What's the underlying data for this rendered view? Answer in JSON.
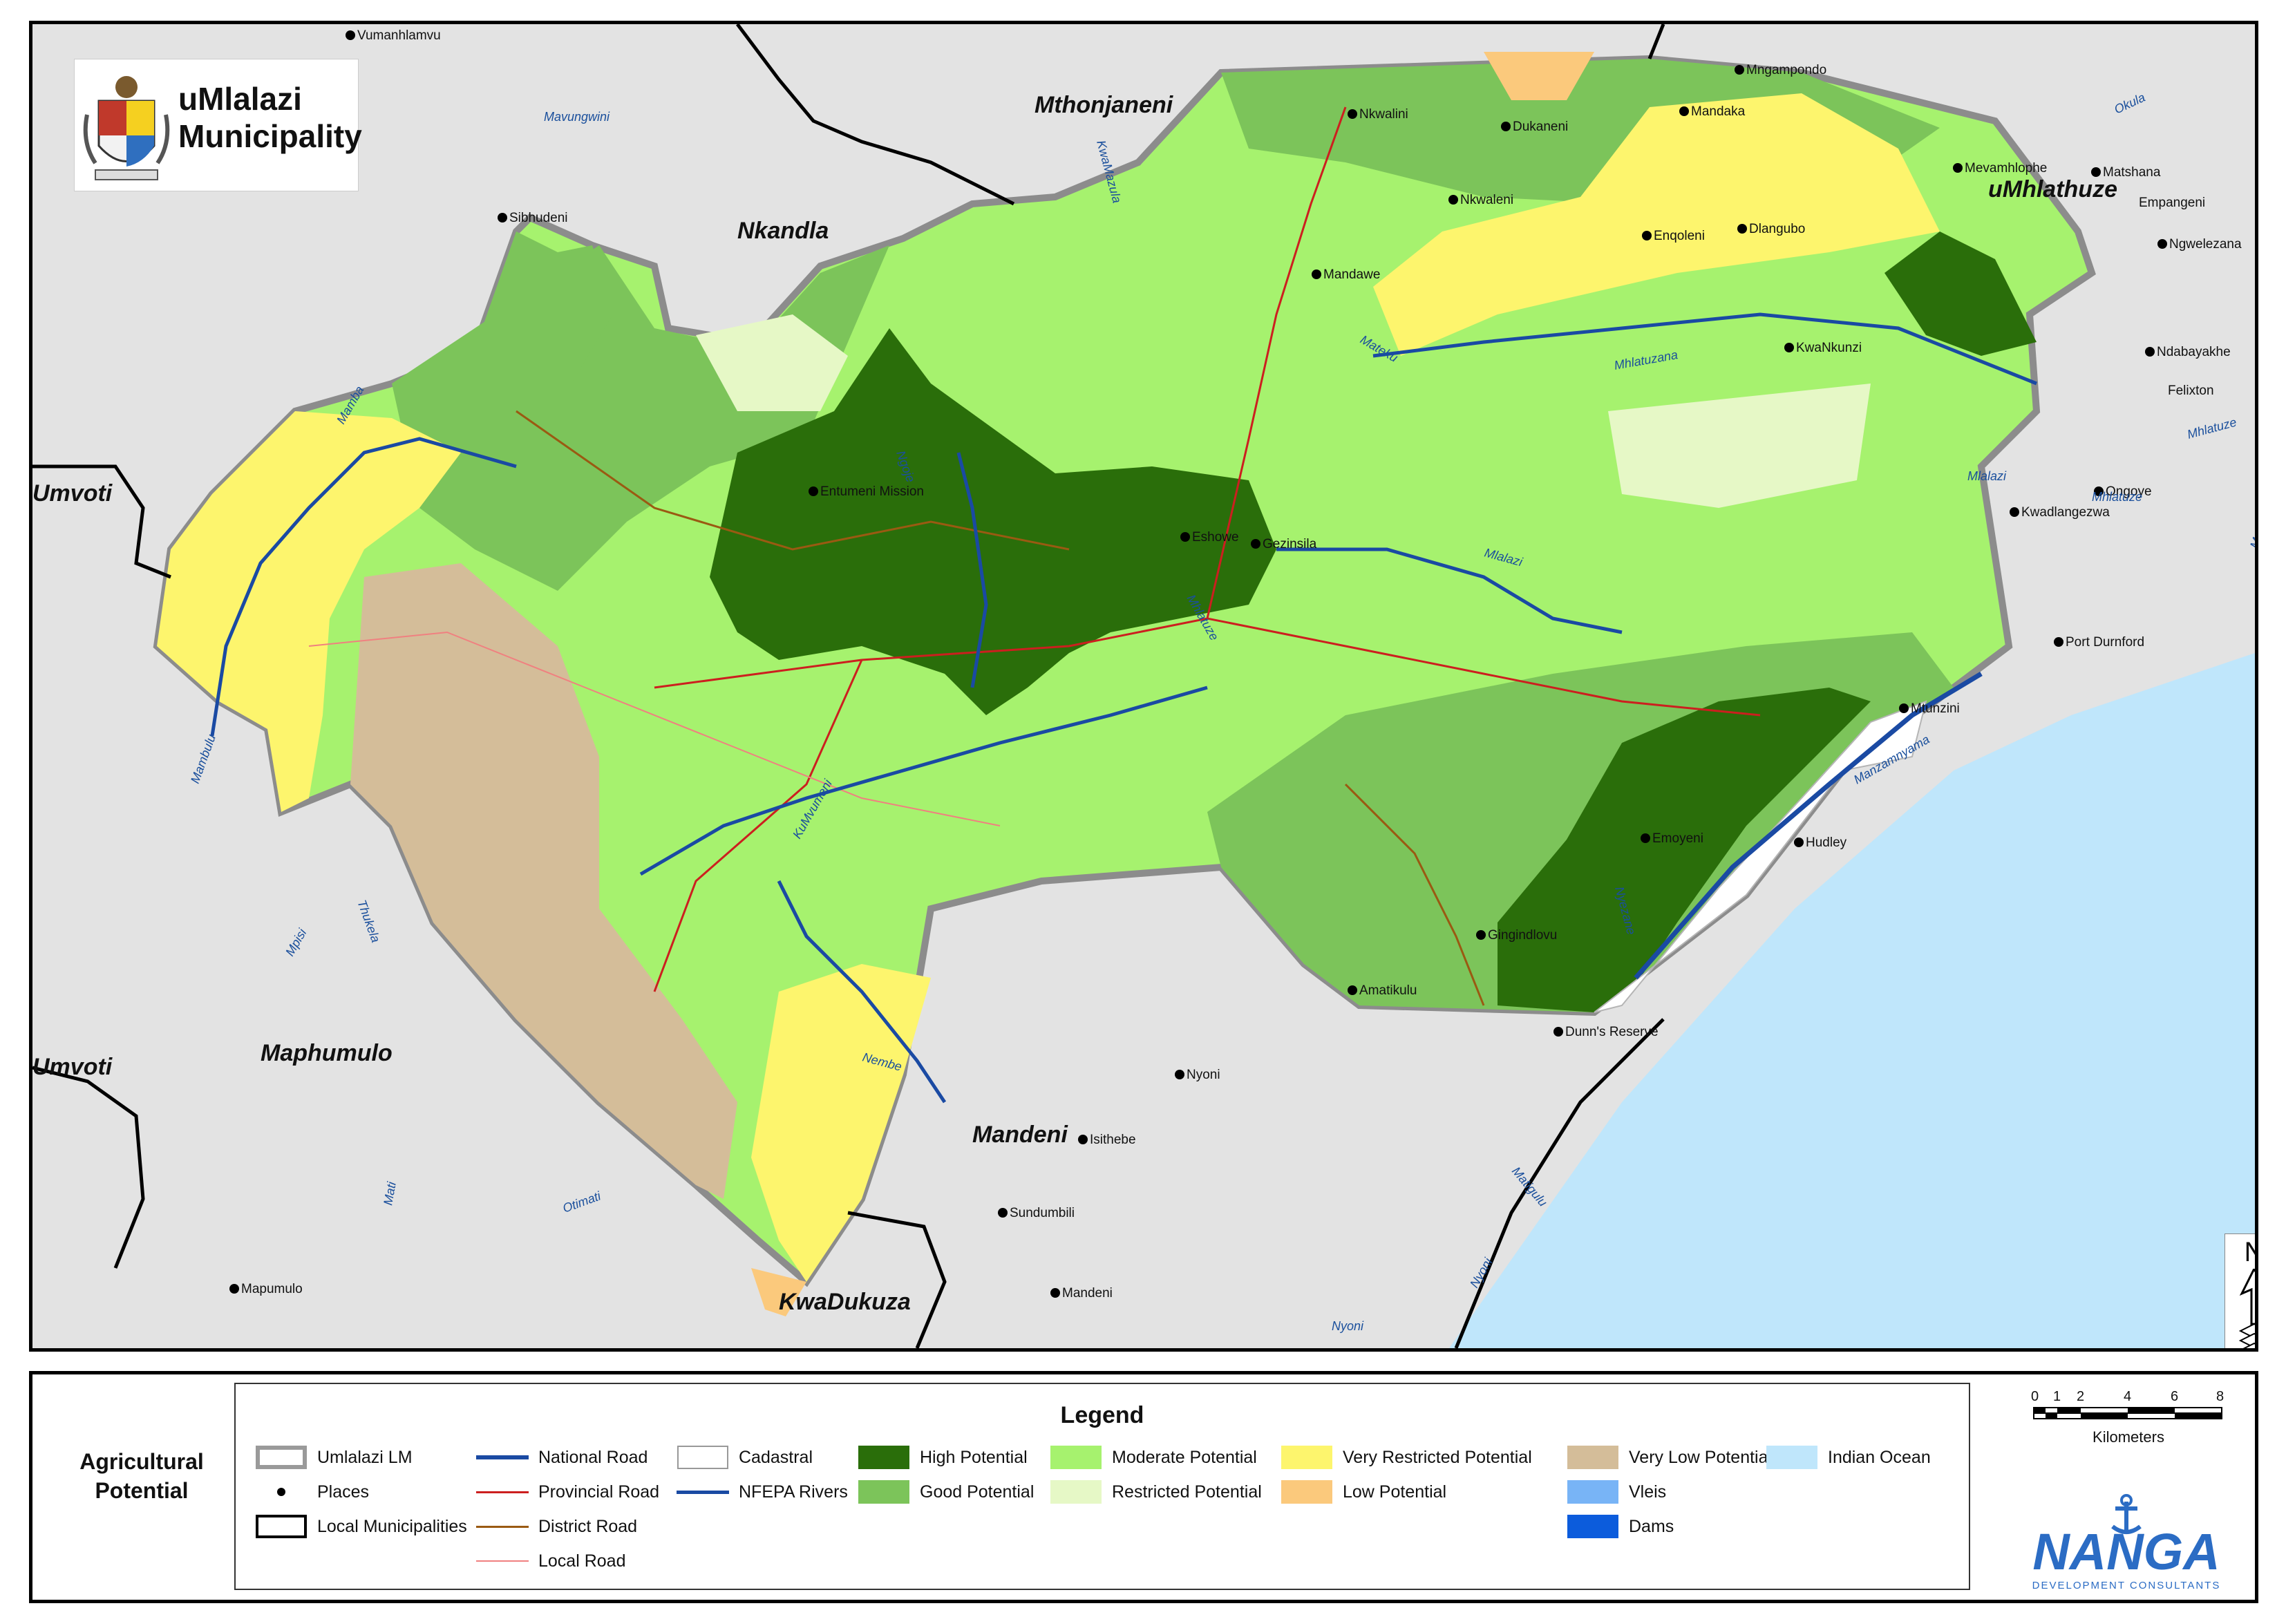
{
  "header": {
    "logo_title": "uMlalazi Municipality"
  },
  "panel_title": "Agricultural Potential",
  "map": {
    "municipalities": [
      "Nkandla",
      "Mthonjaneni",
      "uMhlathuze",
      "Umvoti",
      "Umvoti",
      "Maphumulo",
      "Mandeni",
      "KwaDukuza"
    ],
    "places": [
      "Vumanhlamvu",
      "Sibhudeni",
      "Entumeni Mission",
      "Eshowe",
      "Gezinsila",
      "Nkwalini",
      "Dukaneni",
      "Mandaka",
      "Mngampondo",
      "Nkwaleni",
      "Mandawe",
      "Enqoleni",
      "Dlangubo",
      "KwaNkunzi",
      "Mevamhlophe",
      "Matshana",
      "Empangeni",
      "Ngwelezana",
      "Ndabayakhe",
      "Felixton",
      "Ongoye",
      "Kwadlangezwa",
      "Port Durnford",
      "Mtunzini",
      "Hudley",
      "Emoyeni",
      "Gingindlovu",
      "Amatikulu",
      "Dunn's Reserve",
      "Nyoni",
      "Isithebe",
      "Sundumbili",
      "Mandeni",
      "Mapumulo"
    ],
    "rivers": [
      "Mavungwini",
      "Mamba",
      "Mambulu",
      "Thukela",
      "Mpisi",
      "Mati",
      "Otimati",
      "Nembe",
      "KuMvumeni",
      "Ngoje",
      "Mlalazi",
      "Mhlatuze",
      "Mateku",
      "Mhlatuzana",
      "Mlalazi",
      "Okula",
      "Mhlatuze",
      "Mzingwenya",
      "Manzamnyama",
      "Nyezane",
      "Matigulu",
      "Nyoni",
      "Nyoni",
      "Mhlatuze",
      "KwaMazula"
    ],
    "north_label": "N"
  },
  "legend": {
    "title": "Legend",
    "items": [
      {
        "label": "Umlalazi LM",
        "kind": "boundary",
        "color": "#9a9a9a"
      },
      {
        "label": "Places",
        "kind": "point",
        "color": "#000000"
      },
      {
        "label": "Local Municipalities",
        "kind": "outline",
        "color": "#000000"
      },
      {
        "label": "National Road",
        "kind": "line",
        "color": "#1a4aa3"
      },
      {
        "label": "Provincial Road",
        "kind": "line",
        "color": "#cc1f1f"
      },
      {
        "label": "District Road",
        "kind": "line",
        "color": "#9a5a12"
      },
      {
        "label": "Local Road",
        "kind": "line",
        "color": "#f08080"
      },
      {
        "label": "Cadastral",
        "kind": "outline",
        "color": "#999999"
      },
      {
        "label": "NFEPA Rivers",
        "kind": "line",
        "color": "#1a4aa3"
      },
      {
        "label": "High Potential",
        "kind": "fill",
        "color": "#2a6e0a"
      },
      {
        "label": "Good Potential",
        "kind": "fill",
        "color": "#7cc45a"
      },
      {
        "label": "Moderate Potential",
        "kind": "fill",
        "color": "#a6f26e"
      },
      {
        "label": "Restricted Potential",
        "kind": "fill",
        "color": "#e6f8c6"
      },
      {
        "label": "Very Restricted Potential",
        "kind": "fill",
        "color": "#fdf56d"
      },
      {
        "label": "Low Potential",
        "kind": "fill",
        "color": "#fbc97c"
      },
      {
        "label": "Very Low Potential",
        "kind": "fill",
        "color": "#d4bd99"
      },
      {
        "label": "Vleis",
        "kind": "fill",
        "color": "#78b4f6"
      },
      {
        "label": "Dams",
        "kind": "fill",
        "color": "#0c5cdc"
      },
      {
        "label": "Indian Ocean",
        "kind": "fill",
        "color": "#bfe6fb"
      }
    ]
  },
  "scalebar": {
    "ticks": [
      "0",
      "1",
      "2",
      "4",
      "6",
      "8"
    ],
    "unit": "Kilometers"
  },
  "company": {
    "name": "NANGA",
    "tagline": "DEVELOPMENT CONSULTANTS"
  }
}
